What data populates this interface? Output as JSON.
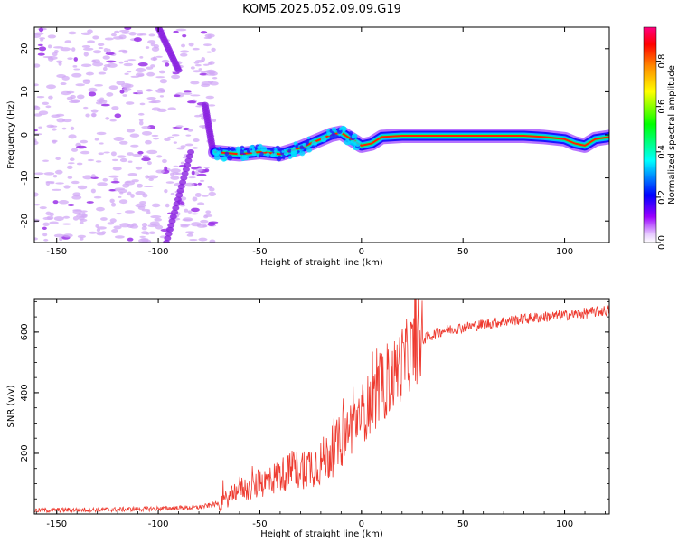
{
  "title": "KOM5.2025.052.09.09.G19",
  "chart_data": [
    {
      "type": "heatmap",
      "xlabel": "Height of straight line (km)",
      "ylabel": "Frequency (Hz)",
      "xlim": [
        -161,
        122
      ],
      "ylim": [
        -25,
        25
      ],
      "x_ticks": [
        -150,
        -100,
        -50,
        0,
        50,
        100
      ],
      "y_ticks": [
        -20,
        -10,
        0,
        10,
        20
      ],
      "colorbar": {
        "label": "Normalized spectral amplitude",
        "range": [
          0.0,
          0.95
        ],
        "ticks": [
          0.0,
          0.2,
          0.4,
          0.6,
          0.8
        ]
      },
      "ridge": {
        "x": [
          -72,
          -60,
          -50,
          -40,
          -30,
          -20,
          -15,
          -10,
          -5,
          0,
          5,
          10,
          20,
          40,
          60,
          80,
          90,
          100,
          105,
          110,
          115,
          122
        ],
        "y": [
          -4,
          -4.5,
          -4,
          -4.5,
          -3,
          -1,
          0,
          0.5,
          -1,
          -2.5,
          -2,
          -0.5,
          -0.2,
          -0.2,
          -0.2,
          -0.2,
          -0.5,
          -1,
          -2,
          -2.5,
          -1,
          -0.5
        ]
      },
      "noise_region_x": [
        -161,
        -72
      ],
      "streaks": [
        {
          "x": [
            -100,
            -90
          ],
          "y": [
            25,
            15
          ]
        },
        {
          "x": [
            -77,
            -73
          ],
          "y": [
            7,
            -4
          ]
        },
        {
          "x": [
            -84,
            -96
          ],
          "y": [
            -4,
            -25
          ]
        }
      ]
    },
    {
      "type": "line",
      "xlabel": "Height of straight line (km)",
      "ylabel": "SNR (v/v)",
      "xlim": [
        -161,
        122
      ],
      "ylim": [
        0,
        710
      ],
      "x_ticks": [
        -150,
        -100,
        -50,
        0,
        50,
        100
      ],
      "y_ticks": [
        200,
        400,
        600
      ],
      "series": [
        {
          "color": "#ee3b30",
          "x": [
            -161,
            -140,
            -120,
            -100,
            -80,
            -70,
            -65,
            -60,
            -55,
            -50,
            -45,
            -40,
            -35,
            -30,
            -25,
            -20,
            -15,
            -10,
            -5,
            0,
            5,
            10,
            15,
            20,
            25,
            30,
            35,
            40,
            50,
            60,
            70,
            80,
            90,
            100,
            110,
            122
          ],
          "y": [
            12,
            14,
            15,
            18,
            22,
            35,
            55,
            90,
            80,
            100,
            110,
            130,
            140,
            150,
            160,
            170,
            200,
            240,
            290,
            330,
            370,
            410,
            450,
            500,
            540,
            575,
            590,
            605,
            615,
            625,
            635,
            643,
            650,
            655,
            662,
            672
          ]
        }
      ]
    }
  ]
}
